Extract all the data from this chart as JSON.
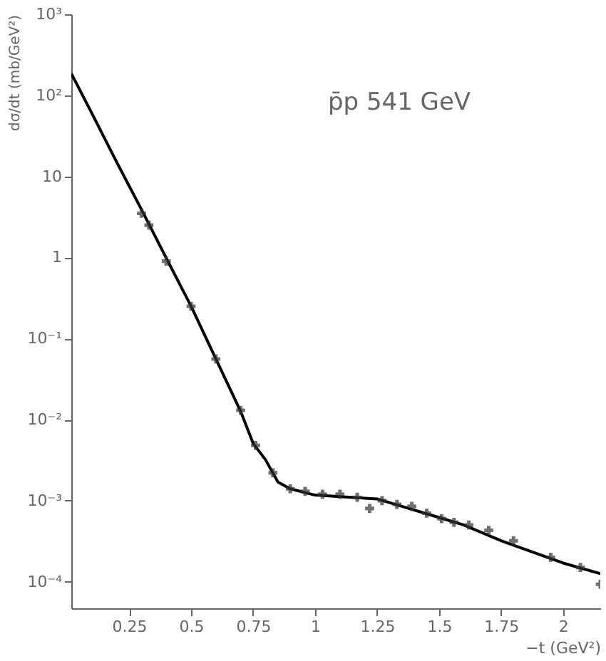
{
  "chart_data": {
    "type": "scatter",
    "xlabel": "−t (GeV²)",
    "ylabel": "dσ/dt (mb/GeV²)",
    "annotations": [
      "p̄p 541 GeV"
    ],
    "log": "y",
    "grid": false,
    "xlim": [
      0.017,
      2.15
    ],
    "xticks": [
      0.25,
      0.5,
      0.75,
      1,
      1.25,
      1.5,
      1.75,
      2
    ],
    "ylim": [
      4.7e-05,
      1000
    ],
    "yticks": [
      {
        "value": 0.0001,
        "label": "10⁻⁴"
      },
      {
        "value": 0.001,
        "label": "10⁻³"
      },
      {
        "value": 0.01,
        "label": "10⁻²"
      },
      {
        "value": 0.1,
        "label": "10⁻¹"
      },
      1,
      10,
      {
        "value": 100,
        "label": "10²"
      },
      {
        "value": 1000,
        "label": "10³"
      }
    ],
    "series": [
      {
        "type": "line",
        "marker": "none",
        "line_style": "solid",
        "color": "#000000",
        "x": [
          0.017,
          0.1,
          0.2,
          0.3,
          0.4,
          0.5,
          0.6,
          0.7,
          0.75,
          0.8,
          0.85,
          0.9,
          1.0,
          1.1,
          1.25,
          1.35,
          1.5,
          1.6,
          1.75,
          2.0,
          2.15
        ],
        "values": [
          186,
          60,
          15,
          3.9,
          0.98,
          0.25,
          0.056,
          0.0126,
          0.0051,
          0.0032,
          0.0017,
          0.0014,
          0.00117,
          0.00112,
          0.00105,
          0.00085,
          0.00062,
          0.0005,
          0.00032,
          0.00017,
          0.000126
        ]
      },
      {
        "marker": "cross",
        "color": "#333333",
        "x": [
          0.3,
          0.33,
          0.4,
          0.5,
          0.6,
          0.7,
          0.76,
          0.83,
          0.9,
          0.96,
          1.03,
          1.1,
          1.17,
          1.22,
          1.27,
          1.33,
          1.39,
          1.45,
          1.51,
          1.56,
          1.62,
          1.7,
          1.8,
          1.95,
          2.07,
          2.15
        ],
        "values": [
          3.5,
          2.5,
          0.9,
          0.25,
          0.056,
          0.013,
          0.0048,
          0.0022,
          0.0014,
          0.0013,
          0.0012,
          0.0012,
          0.0011,
          0.0008,
          0.001,
          0.0009,
          0.00085,
          0.0007,
          0.0006,
          0.00054,
          0.0005,
          0.00043,
          0.00032,
          0.0002,
          0.00015,
          9.3e-05
        ]
      }
    ]
  }
}
